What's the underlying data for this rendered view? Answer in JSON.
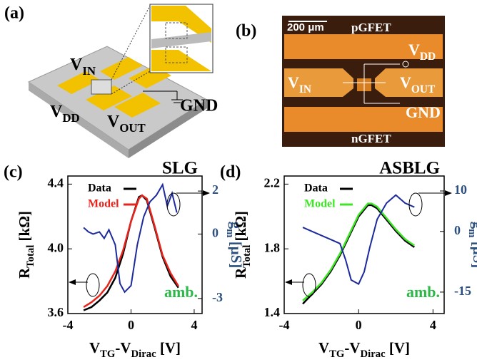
{
  "panel_a": {
    "label": "(a)",
    "v_in": [
      "V",
      "IN"
    ],
    "v_dd": [
      "V",
      "DD"
    ],
    "v_out": [
      "V",
      "OUT"
    ],
    "gnd": "GND"
  },
  "panel_b": {
    "label": "(b)",
    "scale_bar": "200 μm",
    "pgfet": "pGFET",
    "ngfet": "nGFET",
    "v_dd": [
      "V",
      "DD"
    ],
    "v_in": [
      "V",
      "IN"
    ],
    "v_out": [
      "V",
      "OUT"
    ],
    "gnd": "GND"
  },
  "chart_data": [
    {
      "type": "line",
      "panel_label": "(c)",
      "title": "SLG",
      "annotation": "amb.",
      "xlabel": [
        "V",
        "TG",
        "-V",
        "Dirac",
        " [V]"
      ],
      "ylabel": [
        "R",
        "Total",
        " [kΩ]"
      ],
      "y2label": [
        "g",
        "m",
        " [μS]"
      ],
      "xlim": [
        -4,
        4.5
      ],
      "xticks": [
        -4,
        0,
        4
      ],
      "ylim": [
        3.6,
        4.45
      ],
      "yticks": [
        4.4,
        {
          "value": 4,
          "label": "4.0"
        },
        3.6
      ],
      "y2lim": [
        -3.7,
        2.7
      ],
      "y2ticks": [
        2,
        0,
        -3
      ],
      "series": [
        {
          "name": "Data",
          "color": "#000000",
          "x": [
            -3,
            -2.5,
            -2,
            -1.5,
            -1,
            -0.5,
            0,
            0.5,
            0.7,
            1,
            1.5,
            2,
            2.5,
            3
          ],
          "values": [
            3.62,
            3.64,
            3.68,
            3.73,
            3.82,
            3.97,
            4.17,
            4.32,
            4.33,
            4.3,
            4.13,
            3.95,
            3.83,
            3.76
          ]
        },
        {
          "name": "Model",
          "color": "#e8231c",
          "x": [
            -3,
            -2.5,
            -2,
            -1.5,
            -1,
            -0.5,
            0,
            0.5,
            0.7,
            1,
            1.5,
            2,
            2.5,
            3
          ],
          "values": [
            3.64,
            3.67,
            3.71,
            3.77,
            3.86,
            3.99,
            4.17,
            4.31,
            4.33,
            4.31,
            4.14,
            3.96,
            3.85,
            3.77
          ]
        },
        {
          "axis": "y2",
          "color": "#1c2a9c",
          "x": [
            -3,
            -2.7,
            -2.4,
            -2,
            -1.7,
            -1.4,
            -1,
            -0.7,
            -0.4,
            0,
            0.4,
            0.8,
            1.2,
            1.6,
            2,
            2.3,
            2.6,
            2.9
          ],
          "values": [
            0.3,
            0.1,
            0,
            0.1,
            -0.2,
            0.2,
            -0.5,
            -2.3,
            -2.7,
            -2.4,
            -0.5,
            0.8,
            1.5,
            1.8,
            2.3,
            1.3,
            1.9,
            1
          ]
        }
      ]
    },
    {
      "type": "line",
      "panel_label": "(d)",
      "title": "ASBLG",
      "annotation": "amb.",
      "xlabel": [
        "V",
        "TG",
        "-V",
        "Dirac",
        " [V]"
      ],
      "ylabel": [
        "R",
        "Total",
        " [kΩ]"
      ],
      "y2label": [
        "g",
        "m",
        " [μS]"
      ],
      "xlim": [
        -4,
        4.6
      ],
      "xticks": [
        -4,
        0,
        4
      ],
      "ylim": [
        1.4,
        2.25
      ],
      "yticks": [
        2.2,
        1.8,
        1.4
      ],
      "y2lim": [
        -20.3,
        13.7
      ],
      "y2ticks": [
        10,
        0,
        -15
      ],
      "series": [
        {
          "name": "Data",
          "color": "#000000",
          "x": [
            -3,
            -2.5,
            -2,
            -1.5,
            -1,
            -0.5,
            0,
            0.5,
            0.7,
            1,
            1.5,
            2,
            2.5,
            3
          ],
          "values": [
            1.46,
            1.52,
            1.58,
            1.66,
            1.76,
            1.88,
            2,
            2.07,
            2.07,
            2.05,
            1.98,
            1.91,
            1.85,
            1.81
          ]
        },
        {
          "name": "Model",
          "color": "#3ee626",
          "x": [
            -3,
            -2.5,
            -2,
            -1.5,
            -1,
            -0.5,
            0,
            0.5,
            0.7,
            1,
            1.5,
            2,
            2.5,
            3
          ],
          "values": [
            1.48,
            1.53,
            1.59,
            1.67,
            1.77,
            1.89,
            2.01,
            2.08,
            2.08,
            2.06,
            1.99,
            1.92,
            1.86,
            1.82
          ]
        },
        {
          "axis": "y2",
          "color": "#1c2a9c",
          "x": [
            -3,
            -2.5,
            -2,
            -1.5,
            -1,
            -0.7,
            -0.4,
            0,
            0.3,
            0.6,
            1,
            1.5,
            2,
            2.5,
            3
          ],
          "values": [
            1,
            0,
            -1,
            -2,
            -3,
            -7,
            -12,
            -13,
            -10,
            -4,
            3,
            7,
            9,
            7,
            6
          ]
        }
      ]
    }
  ]
}
